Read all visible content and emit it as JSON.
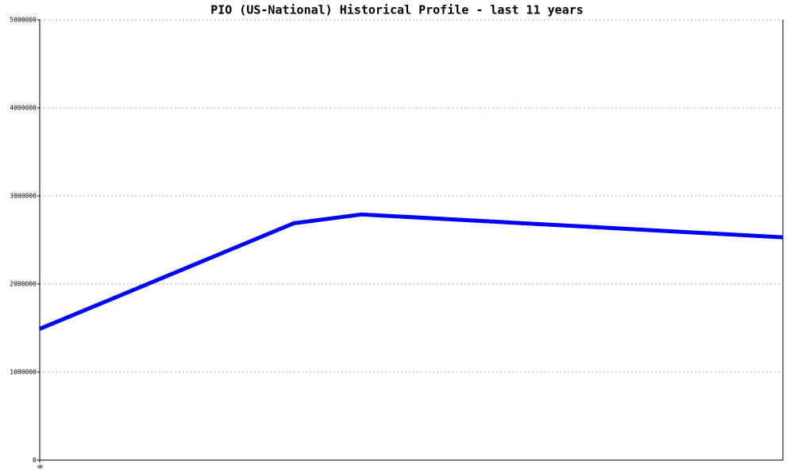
{
  "chart_data": {
    "type": "line",
    "title": "PIO (US-National) Historical Profile - last 11 years",
    "x": [
      0,
      3.76,
      4.76,
      11
    ],
    "series": [
      {
        "color": "#0000ff",
        "values": [
          1490000,
          2690000,
          2790000,
          2530000
        ]
      }
    ],
    "xlim": [
      0,
      11
    ],
    "xticks": [
      0
    ],
    "ylim": [
      0,
      5000000
    ],
    "yticks": [
      0,
      1000000,
      2000000,
      3000000,
      4000000,
      5000000
    ],
    "grid": true
  }
}
